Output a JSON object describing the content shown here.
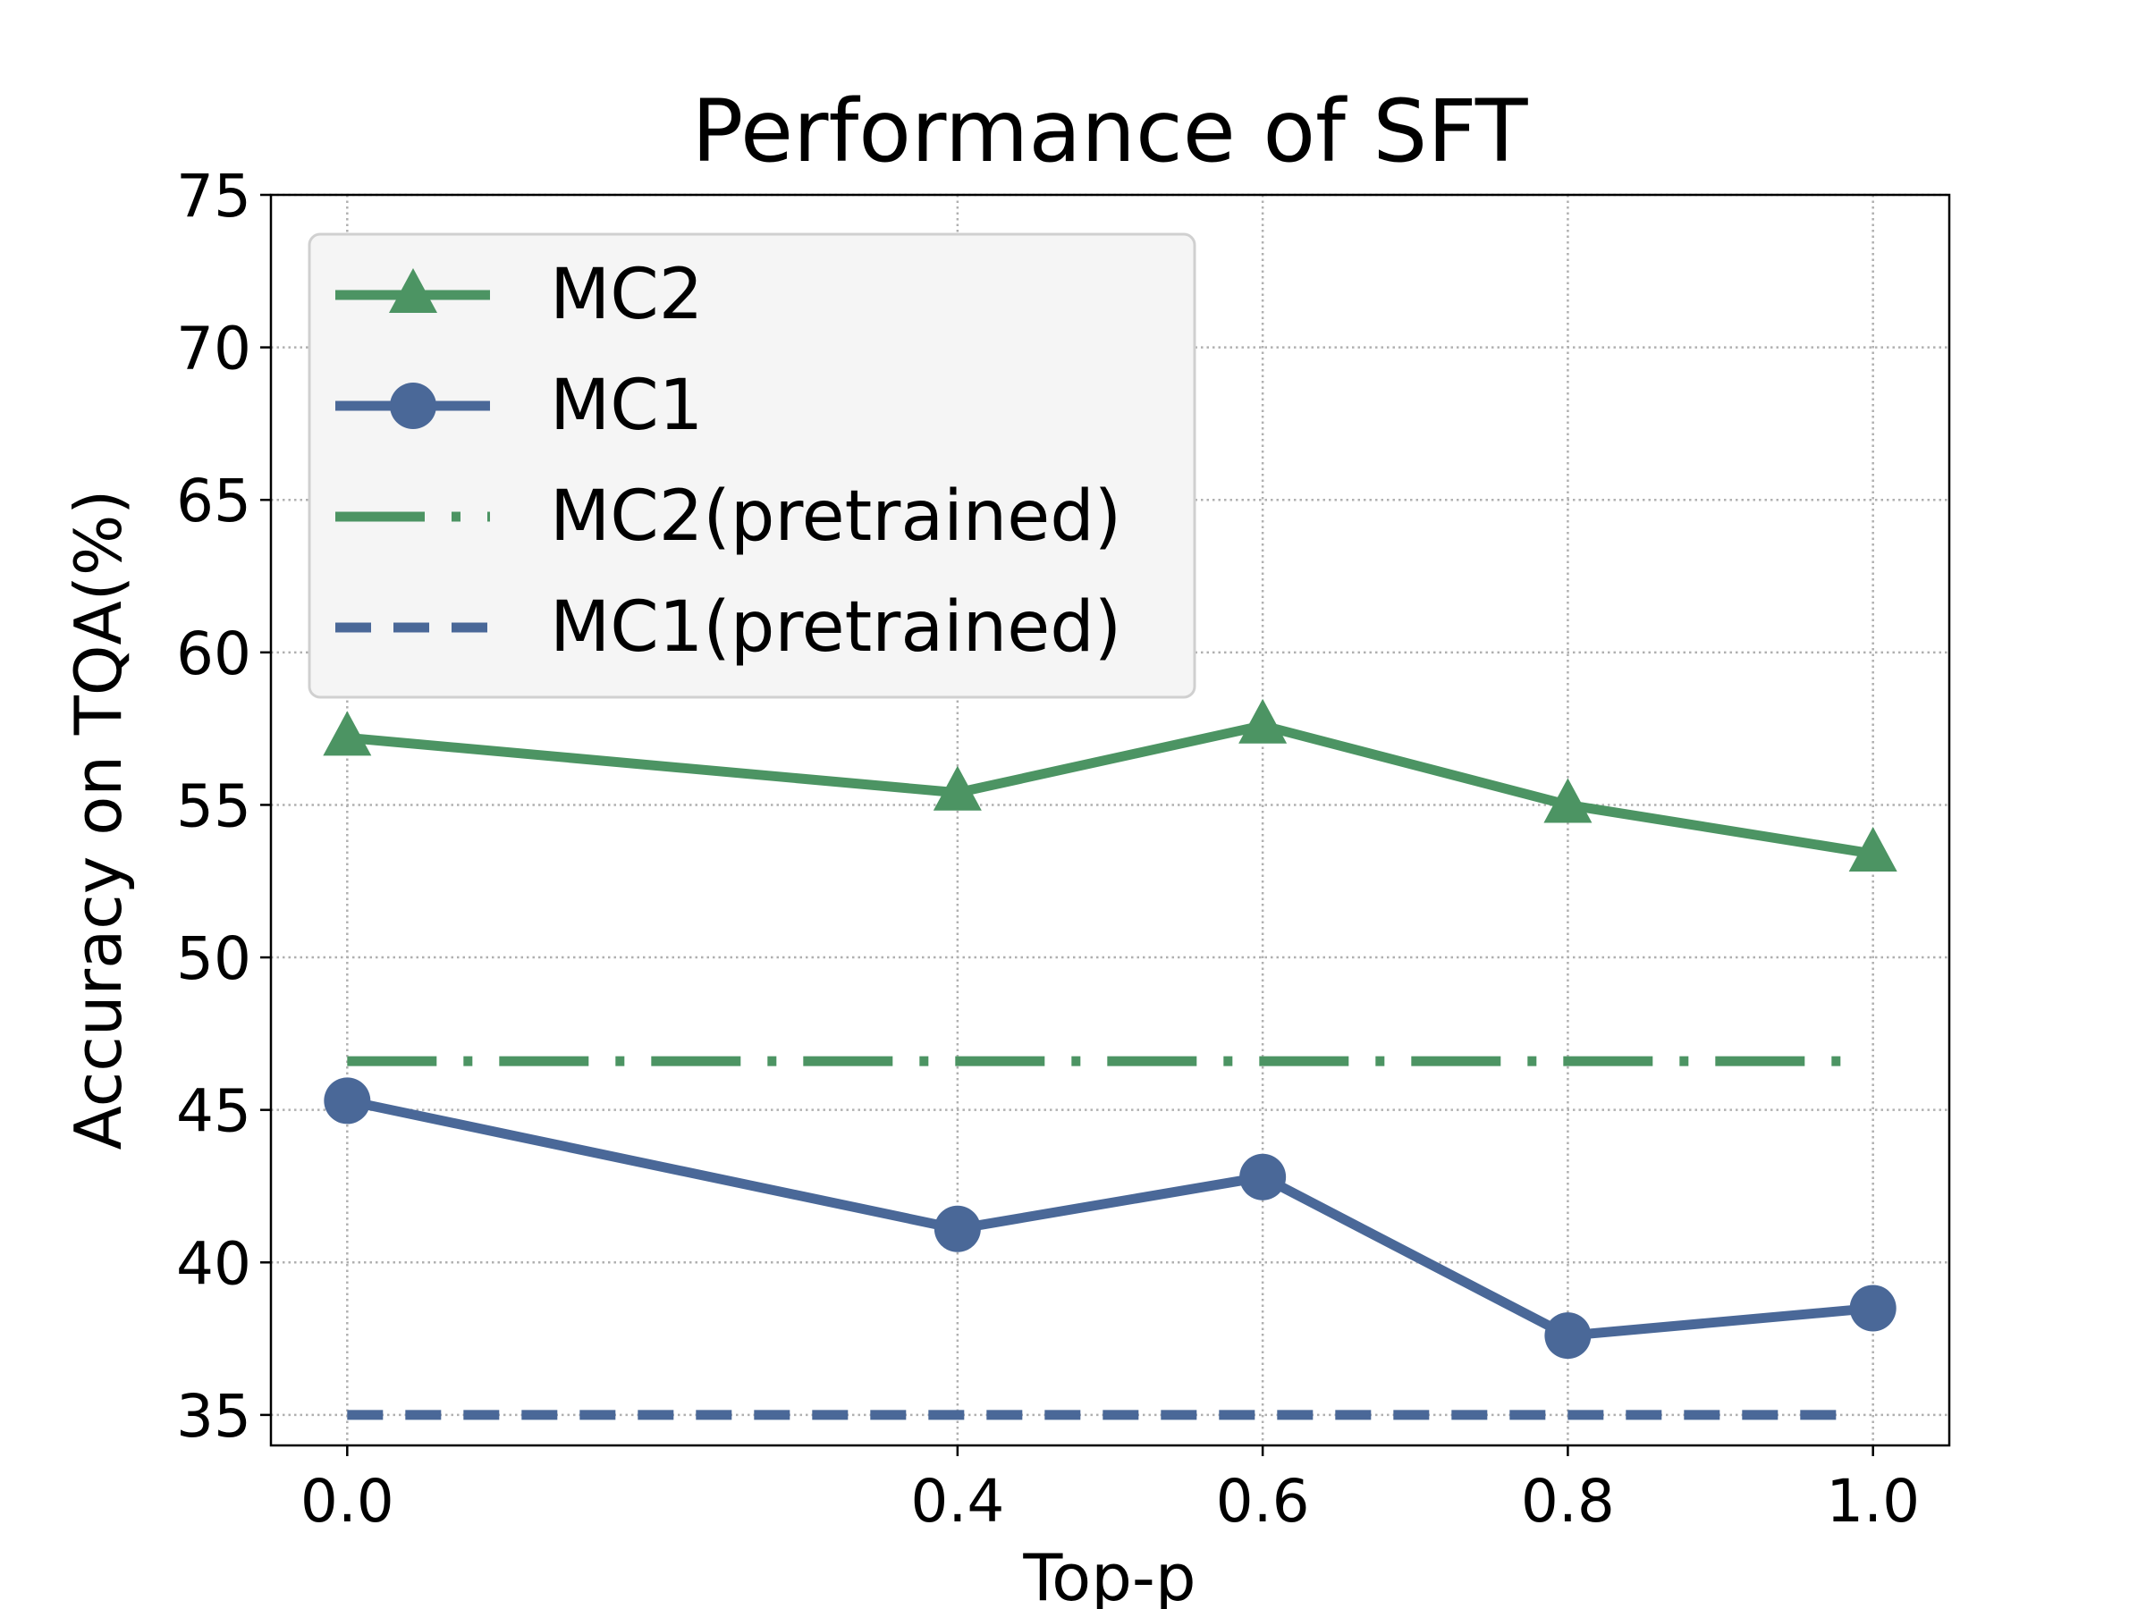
{
  "chart_data": {
    "type": "line",
    "title": "Performance of SFT",
    "xlabel": "Top-p",
    "ylabel": "Accuracy on TQA(%)",
    "xlim": [
      -0.05,
      1.05
    ],
    "ylim": [
      34,
      75
    ],
    "xticks": [
      0.0,
      0.4,
      0.6,
      0.8,
      1.0
    ],
    "xtick_labels": [
      "0.0",
      "0.4",
      "0.6",
      "0.8",
      "1.0"
    ],
    "yticks": [
      35,
      40,
      45,
      50,
      55,
      60,
      65,
      70,
      75
    ],
    "ytick_labels": [
      "35",
      "40",
      "45",
      "50",
      "55",
      "60",
      "65",
      "70",
      "75"
    ],
    "grid": true,
    "legend_position": "top-left",
    "x": [
      0.0,
      0.4,
      0.6,
      0.8,
      1.0
    ],
    "series": [
      {
        "name": "MC2",
        "values": [
          57.2,
          55.4,
          57.6,
          55.0,
          53.4
        ],
        "color": "#4c9463",
        "marker": "triangle",
        "linestyle": "solid"
      },
      {
        "name": "MC1",
        "values": [
          45.3,
          41.1,
          42.8,
          37.6,
          38.5
        ],
        "color": "#4a6898",
        "marker": "circle",
        "linestyle": "solid"
      },
      {
        "name": "MC2(pretrained)",
        "values": [
          46.6,
          46.6,
          46.6,
          46.6,
          46.6
        ],
        "color": "#4c9463",
        "marker": "none",
        "linestyle": "dashdot"
      },
      {
        "name": "MC1(pretrained)",
        "values": [
          35.0,
          35.0,
          35.0,
          35.0,
          35.0
        ],
        "color": "#4a6898",
        "marker": "none",
        "linestyle": "dashed"
      }
    ]
  }
}
